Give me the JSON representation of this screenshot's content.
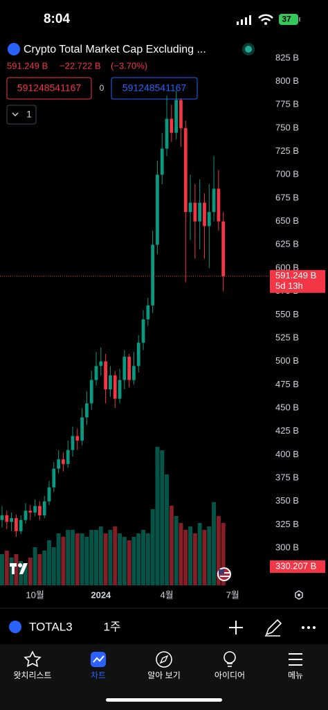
{
  "status_bar": {
    "time": "8:04",
    "battery": "37"
  },
  "header": {
    "title": "Crypto Total Market Cap Excluding ...",
    "price": "591.249 B",
    "change": "−22.722 B",
    "change_pct": "(−3.70%)",
    "bid": "591248541167",
    "spread": "0",
    "ask": "591248541167",
    "interval_button": "1"
  },
  "chart_data": {
    "type": "candlestick",
    "open": [
      330,
      335,
      328,
      332,
      318,
      330,
      340,
      338,
      345,
      335,
      350,
      365,
      385,
      395,
      390,
      405,
      420,
      415,
      440,
      455,
      480,
      495,
      500,
      470,
      485,
      460,
      480,
      505,
      480,
      495,
      520,
      545,
      560,
      625,
      700,
      728,
      760,
      745,
      780,
      750,
      660,
      670,
      650,
      670,
      645,
      660,
      685,
      650
    ],
    "high": [
      345,
      340,
      338,
      336,
      335,
      348,
      346,
      352,
      350,
      356,
      372,
      392,
      405,
      402,
      415,
      430,
      428,
      450,
      468,
      490,
      510,
      515,
      508,
      495,
      490,
      492,
      512,
      508,
      510,
      528,
      555,
      568,
      640,
      715,
      745,
      785,
      775,
      790,
      782,
      758,
      700,
      690,
      695,
      680,
      690,
      720,
      705,
      660
    ],
    "low": [
      322,
      320,
      318,
      312,
      315,
      326,
      330,
      334,
      330,
      332,
      346,
      360,
      380,
      382,
      386,
      398,
      405,
      410,
      432,
      448,
      474,
      485,
      455,
      462,
      450,
      455,
      470,
      472,
      475,
      488,
      512,
      538,
      552,
      615,
      690,
      720,
      735,
      738,
      730,
      585,
      630,
      610,
      620,
      610,
      600,
      650,
      640,
      575
    ],
    "close": [
      335,
      328,
      332,
      318,
      330,
      340,
      338,
      345,
      335,
      350,
      365,
      385,
      395,
      390,
      405,
      420,
      415,
      440,
      455,
      480,
      495,
      500,
      470,
      485,
      460,
      480,
      505,
      480,
      495,
      520,
      545,
      560,
      625,
      700,
      728,
      760,
      745,
      780,
      750,
      660,
      670,
      650,
      670,
      645,
      660,
      685,
      650,
      591.249
    ],
    "volume": [
      45,
      50,
      40,
      45,
      35,
      30,
      40,
      55,
      45,
      50,
      65,
      55,
      75,
      70,
      80,
      80,
      75,
      75,
      70,
      80,
      80,
      85,
      75,
      80,
      85,
      75,
      70,
      65,
      70,
      75,
      80,
      75,
      110,
      200,
      195,
      160,
      115,
      100,
      90,
      80,
      85,
      75,
      90,
      80,
      85,
      120,
      100,
      90
    ],
    "up_color": "#089981",
    "down_color": "#f23645",
    "ylim": [
      260,
      865
    ],
    "yticks": [
      {
        "value": 300,
        "label": "300 B"
      },
      {
        "value": 325,
        "label": "325 B"
      },
      {
        "value": 350,
        "label": "350 B"
      },
      {
        "value": 375,
        "label": "375 B"
      },
      {
        "value": 400,
        "label": "400 B"
      },
      {
        "value": 425,
        "label": "425 B"
      },
      {
        "value": 450,
        "label": "450 B"
      },
      {
        "value": 475,
        "label": "475 B"
      },
      {
        "value": 500,
        "label": "500 B"
      },
      {
        "value": 525,
        "label": "525 B"
      },
      {
        "value": 550,
        "label": "550 B"
      },
      {
        "value": 575,
        "label": "575 B"
      },
      {
        "value": 600,
        "label": "600 B"
      },
      {
        "value": 625,
        "label": "625 B"
      },
      {
        "value": 650,
        "label": "650 B"
      },
      {
        "value": 675,
        "label": "675 B"
      },
      {
        "value": 700,
        "label": "700 B"
      },
      {
        "value": 725,
        "label": "725 B"
      },
      {
        "value": 750,
        "label": "750 B"
      },
      {
        "value": 775,
        "label": "775 B"
      },
      {
        "value": 800,
        "label": "800 B"
      },
      {
        "value": 825,
        "label": "825 B"
      }
    ],
    "xlim": [
      -0.44,
      56.9
    ],
    "xticks": [
      {
        "value": 7,
        "label": "10월"
      },
      {
        "value": 21,
        "label": "2024"
      },
      {
        "value": 35,
        "label": "4월"
      },
      {
        "value": 49,
        "label": "7월"
      }
    ],
    "price_label": "591.249 B",
    "countdown": "5d 13h",
    "volume_label": "330.207 B"
  },
  "toolbar": {
    "symbol": "TOTAL3",
    "interval": "1주"
  },
  "tabs": [
    "왓치리스트",
    "차트",
    "알아 보기",
    "아이디어",
    "메뉴"
  ]
}
